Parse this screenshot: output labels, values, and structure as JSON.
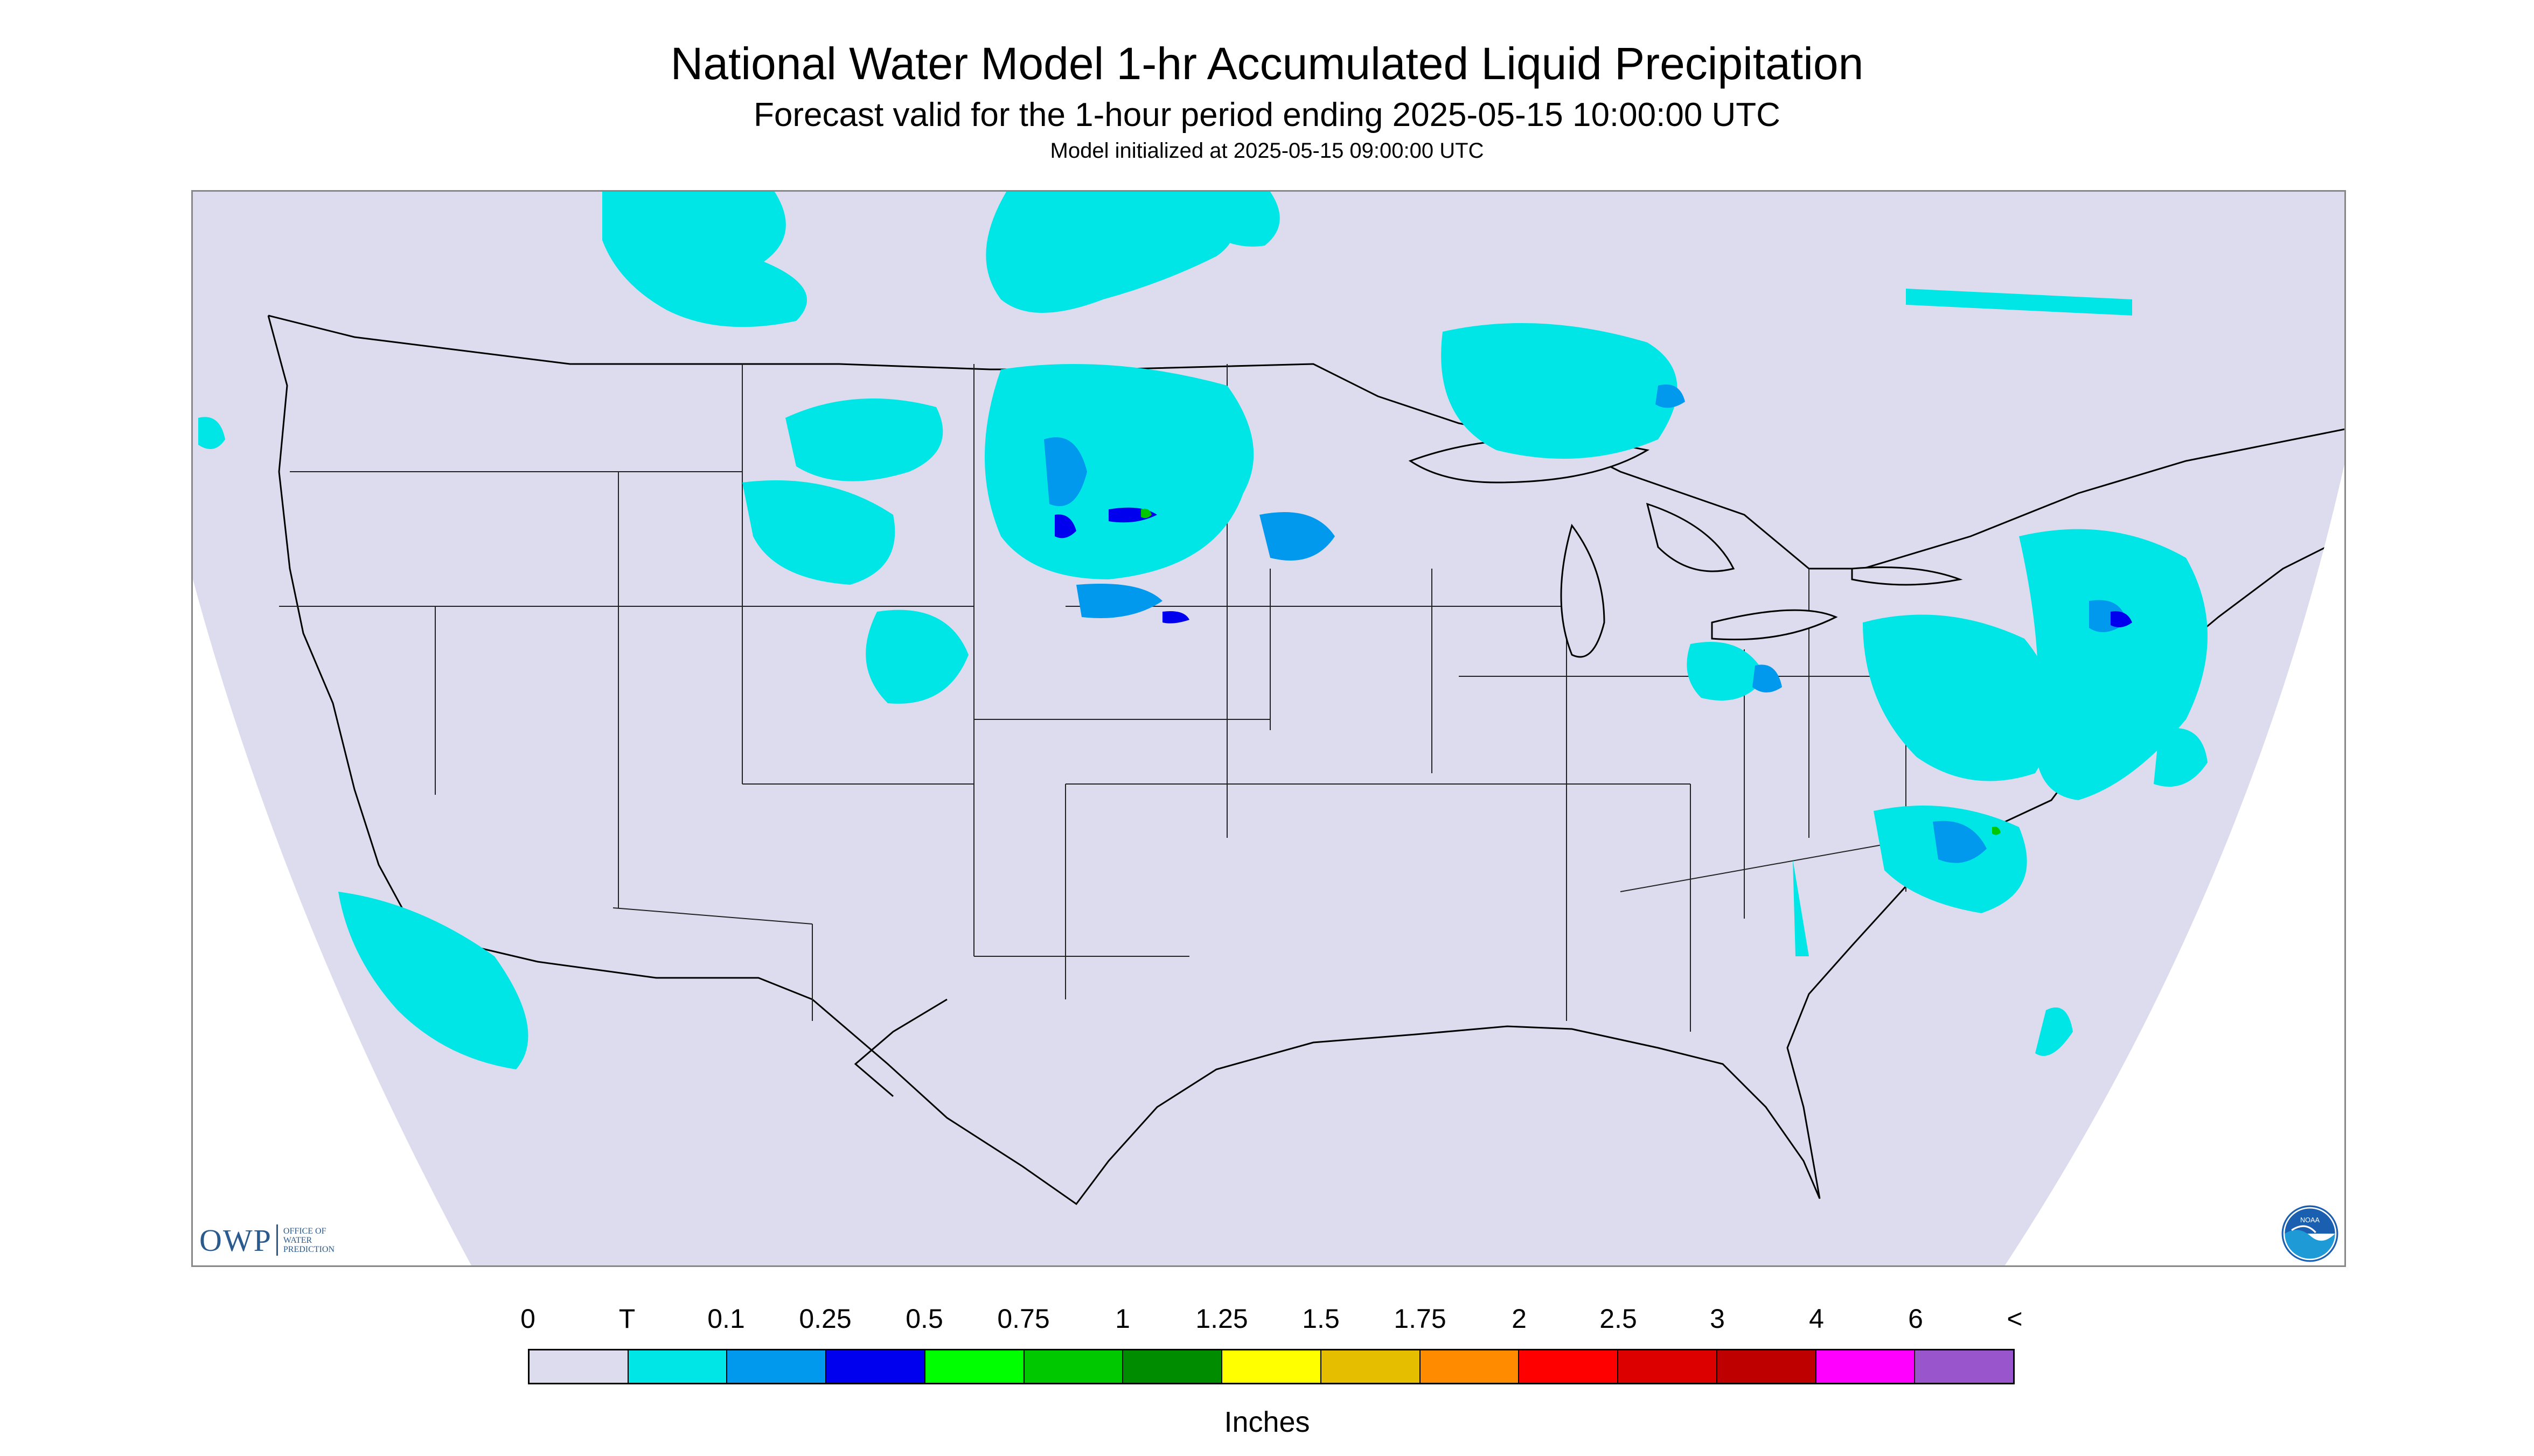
{
  "header": {
    "title": "National Water Model 1-hr Accumulated Liquid Precipitation",
    "subtitle": "Forecast valid for the 1-hour period ending 2025-05-15 10:00:00 UTC",
    "init_line": "Model initialized at 2025-05-15 09:00:00 UTC"
  },
  "logos": {
    "owp_mark": "OWP",
    "owp_line1": "Office of",
    "owp_line2": "Water",
    "owp_line3": "Prediction",
    "noaa": "NOAA"
  },
  "legend": {
    "units": "Inches",
    "ticks": [
      "0",
      "T",
      "0.1",
      "0.25",
      "0.5",
      "0.75",
      "1",
      "1.25",
      "1.5",
      "1.75",
      "2",
      "2.5",
      "3",
      "4",
      "6",
      "<"
    ],
    "colors": [
      "#dcdcee",
      "#00e6e6",
      "#0099ee",
      "#0000ee",
      "#00ff00",
      "#00c800",
      "#008c00",
      "#ffff00",
      "#e6be00",
      "#ff8c00",
      "#ff0000",
      "#dc0000",
      "#be0000",
      "#ff00ff",
      "#9955cc"
    ]
  },
  "map": {
    "background_color": "#dcdcee",
    "outside_color": "#ffffff",
    "boundary_color": "#000000",
    "precip_light_color": "#00e6e6",
    "precip_moderate_color": "#0099ee",
    "precip_heavy_color": "#0000ee",
    "precip_peak_color": "#00c800"
  }
}
